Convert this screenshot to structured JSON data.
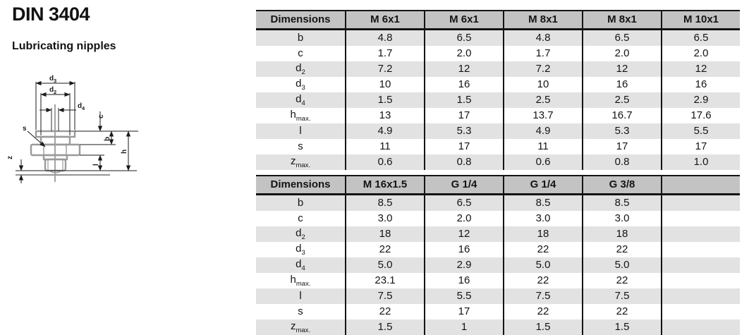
{
  "page": {
    "title": "DIN 3404",
    "subtitle": "Lubricating nipples"
  },
  "colors": {
    "table_header_bg": "#c3c3c3",
    "table_alt_row_bg": "#e2e2e2",
    "table_border": "#141414",
    "text": "#141414",
    "drawing_part_stroke": "#9a9a9a",
    "drawing_dim_stroke": "#1a1a1a"
  },
  "drawing": {
    "labels": {
      "d3_base": "d",
      "d3_sub": "3",
      "d2_base": "d",
      "d2_sub": "2",
      "d4_base": "d",
      "d4_sub": "4",
      "c": "c",
      "b": "b",
      "h": "h",
      "l": "l",
      "s": "s",
      "z": "z"
    }
  },
  "tables": [
    {
      "header": [
        "Dimensions",
        "M 6x1",
        "M 6x1",
        "M 8x1",
        "M 8x1",
        "M 10x1"
      ],
      "rows": [
        {
          "label": "b",
          "sub": "",
          "values": [
            "4.8",
            "6.5",
            "4.8",
            "6.5",
            "6.5"
          ]
        },
        {
          "label": "c",
          "sub": "",
          "values": [
            "1.7",
            "2.0",
            "1.7",
            "2.0",
            "2.0"
          ]
        },
        {
          "label": "d",
          "sub": "2",
          "values": [
            "7.2",
            "12",
            "7.2",
            "12",
            "12"
          ]
        },
        {
          "label": "d",
          "sub": "3",
          "values": [
            "10",
            "16",
            "10",
            "16",
            "16"
          ]
        },
        {
          "label": "d",
          "sub": "4",
          "values": [
            "1.5",
            "1.5",
            "2.5",
            "2.5",
            "2.9"
          ]
        },
        {
          "label": "h",
          "sub": "max.",
          "values": [
            "13",
            "17",
            "13.7",
            "16.7",
            "17.6"
          ]
        },
        {
          "label": "l",
          "sub": "",
          "values": [
            "4.9",
            "5.3",
            "4.9",
            "5.3",
            "5.5"
          ]
        },
        {
          "label": "s",
          "sub": "",
          "values": [
            "11",
            "17",
            "11",
            "17",
            "17"
          ]
        },
        {
          "label": "z",
          "sub": "max.",
          "values": [
            "0.6",
            "0.8",
            "0.6",
            "0.8",
            "1.0"
          ]
        }
      ]
    },
    {
      "header": [
        "Dimensions",
        "M 16x1.5",
        "G 1/4",
        "G 1/4",
        "G 3/8",
        ""
      ],
      "rows": [
        {
          "label": "b",
          "sub": "",
          "values": [
            "8.5",
            "6.5",
            "8.5",
            "8.5",
            ""
          ]
        },
        {
          "label": "c",
          "sub": "",
          "values": [
            "3.0",
            "2.0",
            "3.0",
            "3.0",
            ""
          ]
        },
        {
          "label": "d",
          "sub": "2",
          "values": [
            "18",
            "12",
            "18",
            "18",
            ""
          ]
        },
        {
          "label": "d",
          "sub": "3",
          "values": [
            "22",
            "16",
            "22",
            "22",
            ""
          ]
        },
        {
          "label": "d",
          "sub": "4",
          "values": [
            "5.0",
            "2.9",
            "5.0",
            "5.0",
            ""
          ]
        },
        {
          "label": "h",
          "sub": "max.",
          "values": [
            "23.1",
            "16",
            "22",
            "22",
            ""
          ]
        },
        {
          "label": "l",
          "sub": "",
          "values": [
            "7.5",
            "5.5",
            "7.5",
            "7.5",
            ""
          ]
        },
        {
          "label": "s",
          "sub": "",
          "values": [
            "22",
            "17",
            "22",
            "22",
            ""
          ]
        },
        {
          "label": "z",
          "sub": "max.",
          "values": [
            "1.5",
            "1",
            "1.5",
            "1.5",
            ""
          ]
        }
      ]
    }
  ]
}
